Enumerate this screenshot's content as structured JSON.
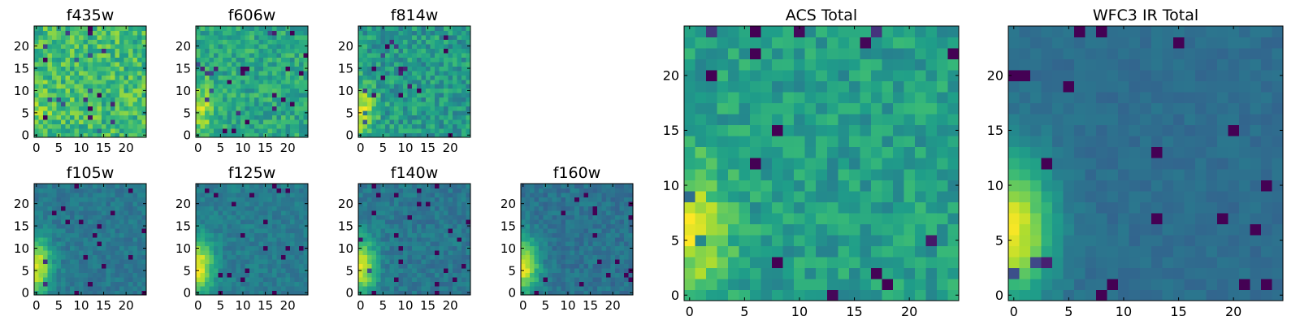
{
  "chart_data": [
    {
      "type": "heatmap",
      "title": "f435w",
      "xticks": [
        "0",
        "5",
        "10",
        "15",
        "20"
      ],
      "yticks": [
        "0",
        "5",
        "10",
        "15",
        "20"
      ],
      "xlim": [
        0,
        24
      ],
      "ylim": [
        0,
        24
      ],
      "colormap": "viridis",
      "pattern": {
        "bias": 0.68,
        "grad": 0.1,
        "noise": 0.34,
        "seed": 11
      }
    },
    {
      "type": "heatmap",
      "title": "f606w",
      "xticks": [
        "0",
        "5",
        "10",
        "15",
        "20"
      ],
      "yticks": [
        "0",
        "5",
        "10",
        "15",
        "20"
      ],
      "xlim": [
        0,
        24
      ],
      "ylim": [
        0,
        24
      ],
      "colormap": "viridis",
      "pattern": {
        "bias": 0.6,
        "grad": 0.3,
        "noise": 0.28,
        "seed": 23
      }
    },
    {
      "type": "heatmap",
      "title": "f814w",
      "xticks": [
        "0",
        "5",
        "10",
        "15",
        "20"
      ],
      "yticks": [
        "0",
        "5",
        "10",
        "15",
        "20"
      ],
      "xlim": [
        0,
        24
      ],
      "ylim": [
        0,
        24
      ],
      "colormap": "viridis",
      "pattern": {
        "bias": 0.54,
        "grad": 0.35,
        "noise": 0.3,
        "seed": 37
      }
    },
    {
      "type": "heatmap",
      "title": "f105w",
      "xticks": [
        "0",
        "5",
        "10",
        "15",
        "20"
      ],
      "yticks": [
        "0",
        "5",
        "10",
        "15",
        "20"
      ],
      "xlim": [
        0,
        24
      ],
      "ylim": [
        0,
        24
      ],
      "colormap": "viridis",
      "pattern": {
        "bias": 0.4,
        "grad": 0.55,
        "noise": 0.14,
        "seed": 41
      }
    },
    {
      "type": "heatmap",
      "title": "f125w",
      "xticks": [
        "0",
        "5",
        "10",
        "15",
        "20"
      ],
      "yticks": [
        "0",
        "5",
        "10",
        "15",
        "20"
      ],
      "xlim": [
        0,
        24
      ],
      "ylim": [
        0,
        24
      ],
      "colormap": "viridis",
      "pattern": {
        "bias": 0.42,
        "grad": 0.55,
        "noise": 0.14,
        "seed": 53
      }
    },
    {
      "type": "heatmap",
      "title": "f140w",
      "xticks": [
        "0",
        "5",
        "10",
        "15",
        "20"
      ],
      "yticks": [
        "0",
        "5",
        "10",
        "15",
        "20"
      ],
      "xlim": [
        0,
        24
      ],
      "ylim": [
        0,
        24
      ],
      "colormap": "viridis",
      "pattern": {
        "bias": 0.4,
        "grad": 0.55,
        "noise": 0.15,
        "seed": 67
      }
    },
    {
      "type": "heatmap",
      "title": "f160w",
      "xticks": [
        "0",
        "5",
        "10",
        "15",
        "20"
      ],
      "yticks": [
        "0",
        "5",
        "10",
        "15",
        "20"
      ],
      "xlim": [
        0,
        24
      ],
      "ylim": [
        0,
        24
      ],
      "colormap": "viridis",
      "pattern": {
        "bias": 0.38,
        "grad": 0.58,
        "noise": 0.15,
        "seed": 79
      }
    },
    {
      "type": "heatmap",
      "title": "ACS Total",
      "xticks": [
        "0",
        "5",
        "10",
        "15",
        "20"
      ],
      "yticks": [
        "0",
        "5",
        "10",
        "15",
        "20"
      ],
      "xlim": [
        0,
        24
      ],
      "ylim": [
        0,
        24
      ],
      "colormap": "viridis",
      "pattern": {
        "bias": 0.56,
        "grad": 0.38,
        "noise": 0.24,
        "seed": 97
      }
    },
    {
      "type": "heatmap",
      "title": "WFC3 IR Total",
      "xticks": [
        "0",
        "5",
        "10",
        "15",
        "20"
      ],
      "yticks": [
        "0",
        "5",
        "10",
        "15",
        "20"
      ],
      "xlim": [
        0,
        24
      ],
      "ylim": [
        0,
        24
      ],
      "colormap": "viridis",
      "pattern": {
        "bias": 0.36,
        "grad": 0.6,
        "noise": 0.08,
        "seed": 113
      }
    }
  ]
}
